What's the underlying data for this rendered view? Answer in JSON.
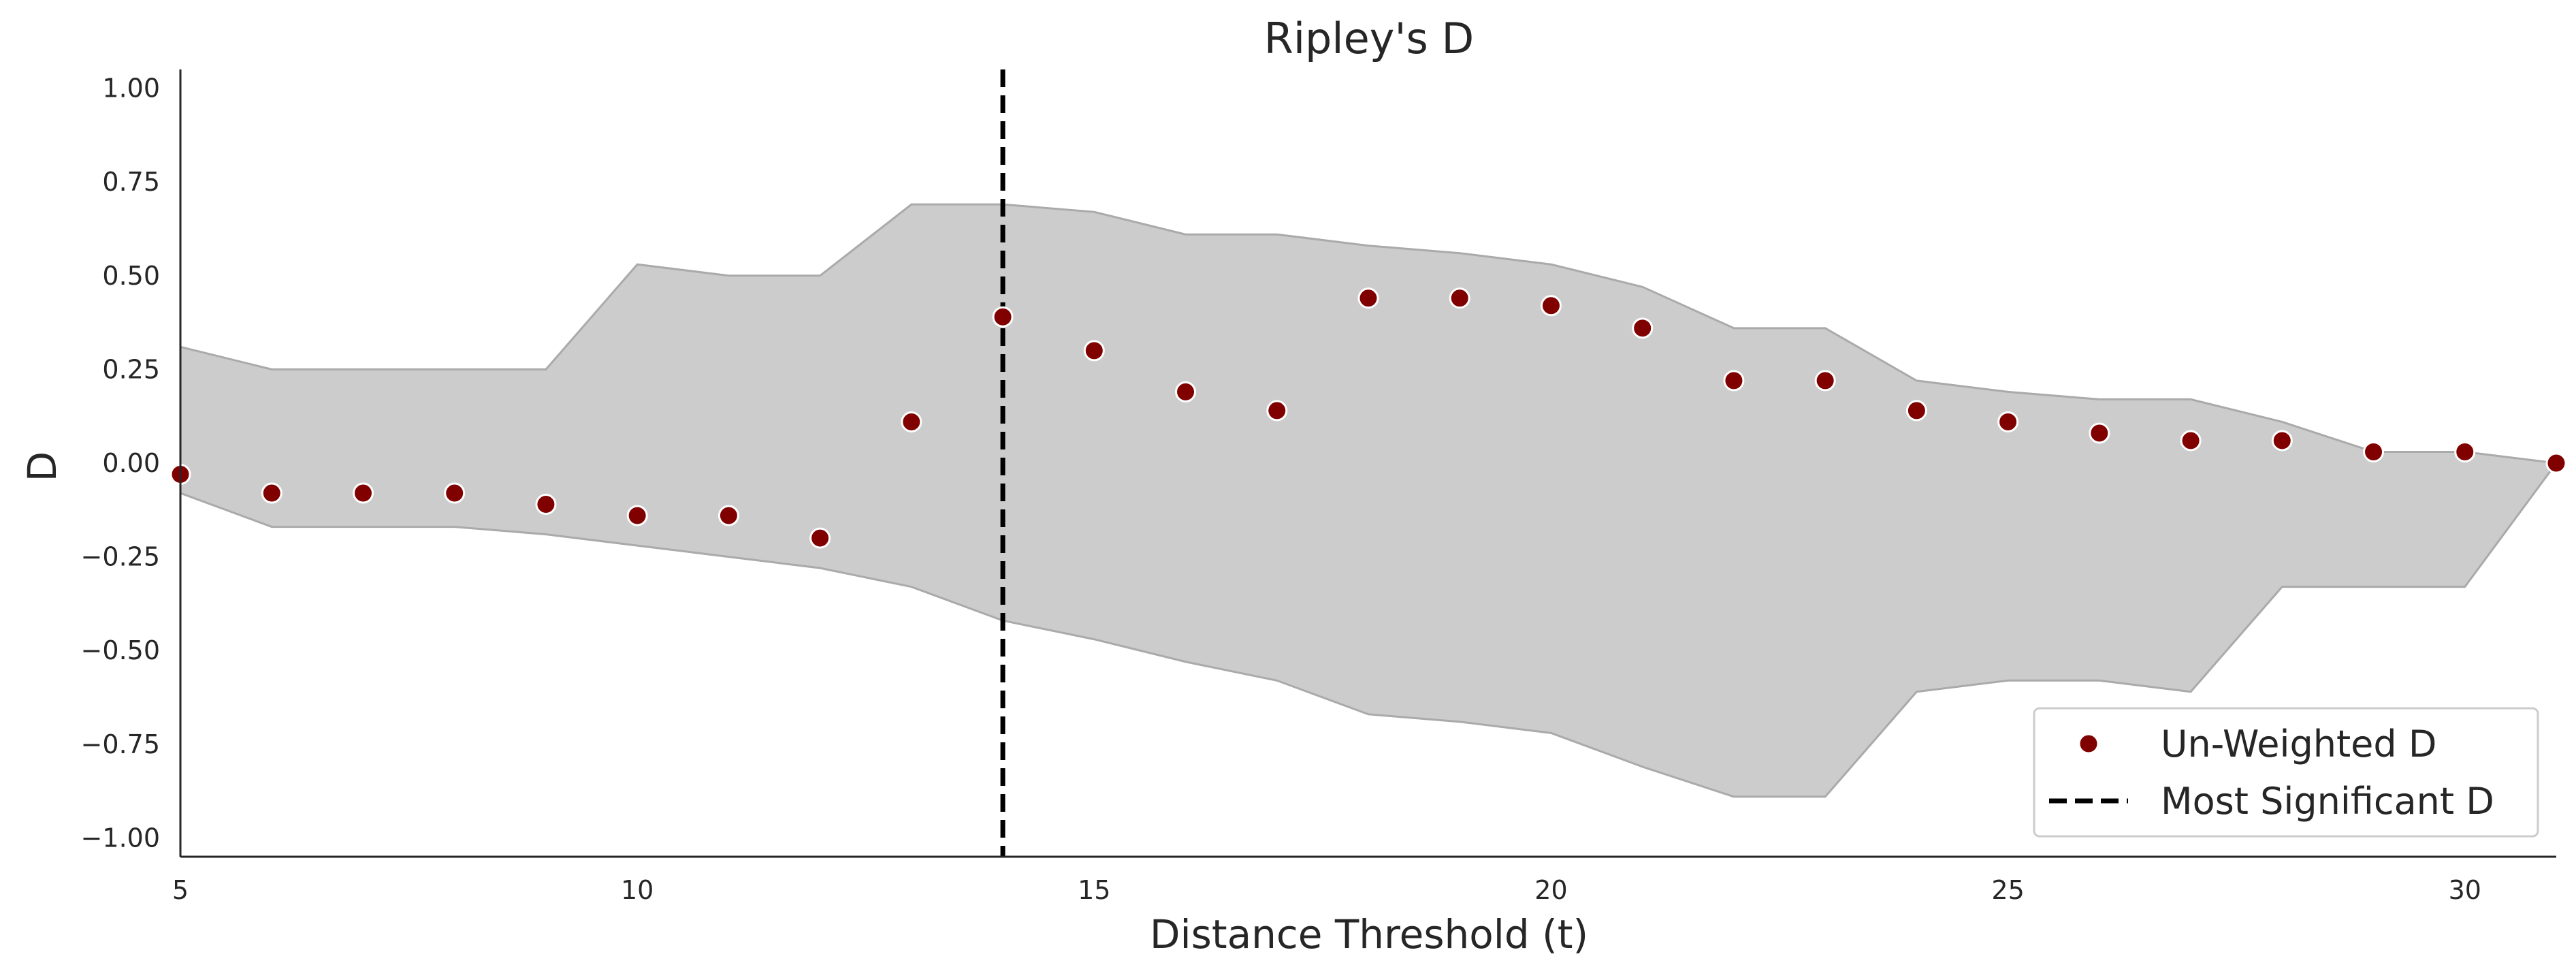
{
  "chart_data": {
    "type": "scatter",
    "title": "Ripley's D",
    "xlabel": "Distance Threshold (t)",
    "ylabel": "D",
    "xlim": [
      5,
      31
    ],
    "ylim": [
      -1.05,
      1.05
    ],
    "xticks": [
      5,
      10,
      15,
      20,
      25,
      30
    ],
    "yticks": [
      1.0,
      0.75,
      0.5,
      0.25,
      0.0,
      -0.25,
      -0.5,
      -0.75,
      -1.0
    ],
    "ytick_labels": [
      "1.00",
      "0.75",
      "0.50",
      "0.25",
      "0.00",
      "−0.25",
      "−0.50",
      "−0.75",
      "−1.00"
    ],
    "grid": false,
    "legend_position": "bottom-right",
    "series": [
      {
        "name": "Un-Weighted D",
        "kind": "scatter",
        "color": "#800000",
        "x": [
          5,
          6,
          7,
          8,
          9,
          10,
          11,
          12,
          13,
          14,
          15,
          16,
          17,
          18,
          19,
          20,
          21,
          22,
          23,
          24,
          25,
          26,
          27,
          28,
          29,
          30,
          31
        ],
        "y": [
          -0.03,
          -0.08,
          -0.08,
          -0.08,
          -0.11,
          -0.14,
          -0.14,
          -0.2,
          0.11,
          0.39,
          0.3,
          0.19,
          0.14,
          0.44,
          0.44,
          0.42,
          0.36,
          0.22,
          0.22,
          0.14,
          0.11,
          0.08,
          0.06,
          0.06,
          0.03,
          0.03,
          0.0
        ]
      },
      {
        "name": "Most Significant D",
        "kind": "vline",
        "color": "#000000",
        "x": 14
      }
    ],
    "envelope": {
      "color": "#cccccc",
      "edge_color": "#aaaaaa",
      "x": [
        5,
        6,
        7,
        8,
        9,
        10,
        11,
        12,
        13,
        14,
        15,
        16,
        17,
        18,
        19,
        20,
        21,
        22,
        23,
        24,
        25,
        26,
        27,
        28,
        29,
        30,
        31
      ],
      "upper": [
        0.31,
        0.25,
        0.25,
        0.25,
        0.25,
        0.53,
        0.5,
        0.5,
        0.69,
        0.69,
        0.67,
        0.61,
        0.61,
        0.58,
        0.56,
        0.53,
        0.47,
        0.36,
        0.36,
        0.22,
        0.19,
        0.17,
        0.17,
        0.11,
        0.03,
        0.03,
        0.0
      ],
      "lower": [
        -0.08,
        -0.17,
        -0.17,
        -0.17,
        -0.19,
        -0.22,
        -0.25,
        -0.28,
        -0.33,
        -0.42,
        -0.47,
        -0.53,
        -0.58,
        -0.67,
        -0.69,
        -0.72,
        -0.81,
        -0.89,
        -0.89,
        -0.61,
        -0.58,
        -0.58,
        -0.61,
        -0.33,
        -0.33,
        -0.33,
        0.0
      ]
    }
  }
}
